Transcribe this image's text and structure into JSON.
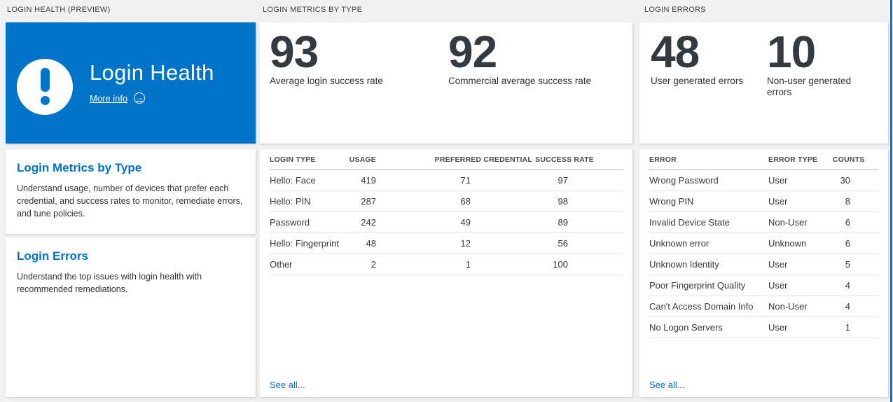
{
  "panels": {
    "login_health": {
      "header": "LOGIN HEALTH (PREVIEW)",
      "tile": {
        "title": "Login Health",
        "more_info_label": "More info"
      },
      "sections": [
        {
          "title": "Login Metrics by Type",
          "description": "Understand usage, number of devices that prefer each credential, and success rates to monitor, remediate errors, and tune policies."
        },
        {
          "title": "Login Errors",
          "description": "Understand the top issues with login health with recommended remediations."
        }
      ]
    },
    "login_metrics": {
      "header": "LOGIN METRICS BY TYPE",
      "stats": [
        {
          "value": "93",
          "label": "Average login success rate"
        },
        {
          "value": "92",
          "label": "Commercial average success rate"
        }
      ],
      "table": {
        "columns": [
          "LOGIN TYPE",
          "USAGE",
          "PREFERRED CREDENTIAL",
          "SUCCESS RATE"
        ],
        "rows": [
          [
            "Hello: Face",
            "419",
            "71",
            "97"
          ],
          [
            "Hello: PIN",
            "287",
            "68",
            "98"
          ],
          [
            "Password",
            "242",
            "49",
            "89"
          ],
          [
            "Hello: Fingerprint",
            "48",
            "12",
            "56"
          ],
          [
            "Other",
            "2",
            "1",
            "100"
          ]
        ]
      },
      "see_all": "See all..."
    },
    "login_errors": {
      "header": "LOGIN ERRORS",
      "stats": [
        {
          "value": "48",
          "label": "User generated errors"
        },
        {
          "value": "10",
          "label": "Non-user generated errors"
        }
      ],
      "table": {
        "columns": [
          "ERROR",
          "ERROR TYPE",
          "COUNTS"
        ],
        "rows": [
          [
            "Wrong Password",
            "User",
            "30"
          ],
          [
            "Wrong PIN",
            "User",
            "8"
          ],
          [
            "Invalid Device State",
            "Non-User",
            "6"
          ],
          [
            "Unknown error",
            "Unknown",
            "6"
          ],
          [
            "Unknown Identity",
            "User",
            "5"
          ],
          [
            "Poor Fingerprint Quality",
            "User",
            "4"
          ],
          [
            "Can't Access Domain Info",
            "Non-User",
            "4"
          ],
          [
            "No Logon Servers",
            "User",
            "1"
          ]
        ]
      },
      "see_all": "See all..."
    }
  },
  "icons": {
    "arrow_right": "→"
  },
  "colors": {
    "accent_blue": "#0074c8",
    "heading_link_blue": "#0072c6",
    "background_gray": "#f1f1f1",
    "number_dark": "#333a40"
  }
}
